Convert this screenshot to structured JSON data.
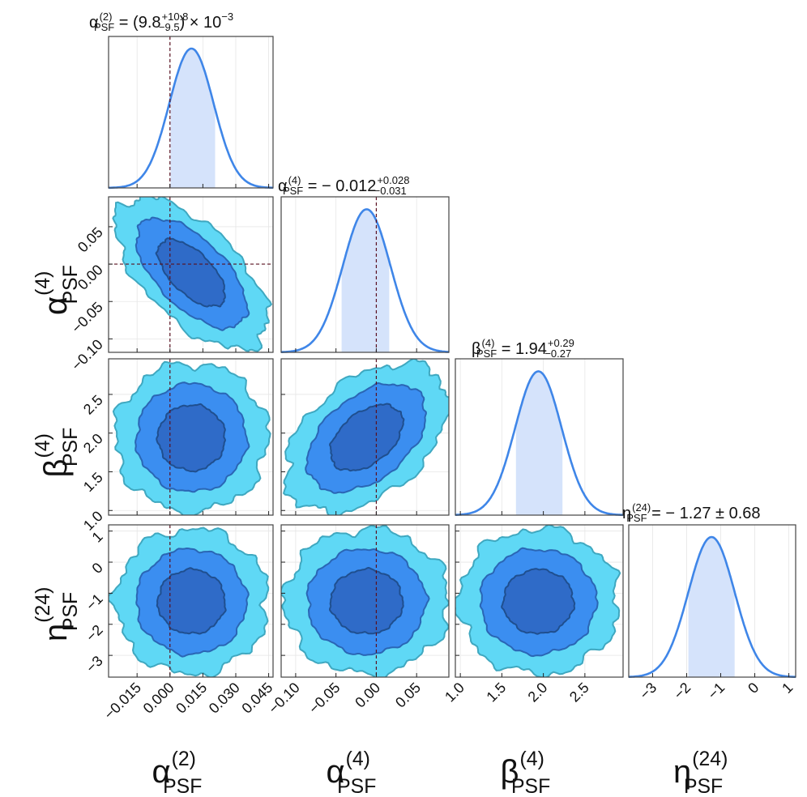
{
  "chart_data": {
    "type": "corner",
    "description": "Posterior corner plot of PSF parameters",
    "colors": {
      "sigma1": "#2f6bc8",
      "sigma2": "#3b8ef0",
      "sigma3": "#5fd8f5",
      "sigma1_edge": "#1f4f8f",
      "sigma2_edge": "#2a66b5",
      "sigma3_edge": "#3fa8c0",
      "marginal_line": "#3f86e8",
      "marginal_fill": "#d5e3fb",
      "truth_line": "#5a1020"
    },
    "parameters": [
      {
        "key": "a2",
        "label": {
          "sym": "α",
          "sup": "(2)",
          "sub": "PSF"
        },
        "title": {
          "left": "α",
          "sup": "(2)",
          "sub": "PSF",
          "eq": " = (9.8",
          "plus": "+10.8",
          "minus": "−9.5",
          "tail": ") × 10",
          "exp": "−3"
        },
        "median": 0.0098,
        "sigma": 0.0101,
        "ci": [
          0.0003,
          0.0206
        ],
        "range": [
          -0.028,
          0.047
        ],
        "ticks": [
          -0.015,
          0.0,
          0.015,
          0.03,
          0.045
        ],
        "tick_labels": [
          "−0.015",
          "0.000",
          "0.015",
          "0.030",
          "0.045"
        ],
        "truth": 0.0
      },
      {
        "key": "a4",
        "label": {
          "sym": "α",
          "sup": "(4)",
          "sub": "PSF"
        },
        "title": {
          "left": "α",
          "sup": "(4)",
          "sub": "PSF",
          "eq": " = − 0.012",
          "plus": "+0.028",
          "minus": "−0.031",
          "tail": "",
          "exp": ""
        },
        "median": -0.012,
        "sigma": 0.0295,
        "ci": [
          -0.043,
          0.016
        ],
        "range": [
          -0.118,
          0.09
        ],
        "ticks": [
          -0.1,
          -0.05,
          0.0,
          0.05
        ],
        "tick_labels": [
          "−0.10",
          "−0.05",
          "0.00",
          "0.05"
        ],
        "truth": 0.0
      },
      {
        "key": "b4",
        "label": {
          "sym": "β",
          "sup": "(4)",
          "sub": "PSF"
        },
        "title": {
          "left": "β",
          "sup": "(4)",
          "sub": "PSF",
          "eq": " = 1.94",
          "plus": "+0.29",
          "minus": "−0.27",
          "tail": "",
          "exp": ""
        },
        "median": 1.94,
        "sigma": 0.28,
        "ci": [
          1.67,
          2.23
        ],
        "range": [
          0.94,
          2.96
        ],
        "ticks": [
          1.0,
          1.5,
          2.0,
          2.5
        ],
        "tick_labels": [
          "1.0",
          "1.5",
          "2.0",
          "2.5"
        ],
        "truth": null
      },
      {
        "key": "e24",
        "label": {
          "sym": "η",
          "sup": "(24)",
          "sub": "PSF"
        },
        "title": {
          "left": "η",
          "sup": "(24)",
          "sub": "PSF",
          "eq": " = − 1.27 ± 0.68",
          "plus": "",
          "minus": "",
          "tail": "",
          "exp": ""
        },
        "median": -1.27,
        "sigma": 0.68,
        "ci": [
          -1.95,
          -0.59
        ],
        "range": [
          -3.7,
          1.2
        ],
        "ticks": [
          -3,
          -2,
          -1,
          0,
          1
        ],
        "tick_labels": [
          "−3",
          "−2",
          "−1",
          "0",
          "1"
        ],
        "truth": null
      }
    ],
    "correlations": {
      "a4|a2": -0.62,
      "b4|a2": 0.0,
      "b4|a4": 0.45,
      "e24|a2": 0.0,
      "e24|a4": 0.0,
      "e24|b4": 0.0
    },
    "contour_levels_sigma": [
      1,
      2,
      3
    ]
  }
}
